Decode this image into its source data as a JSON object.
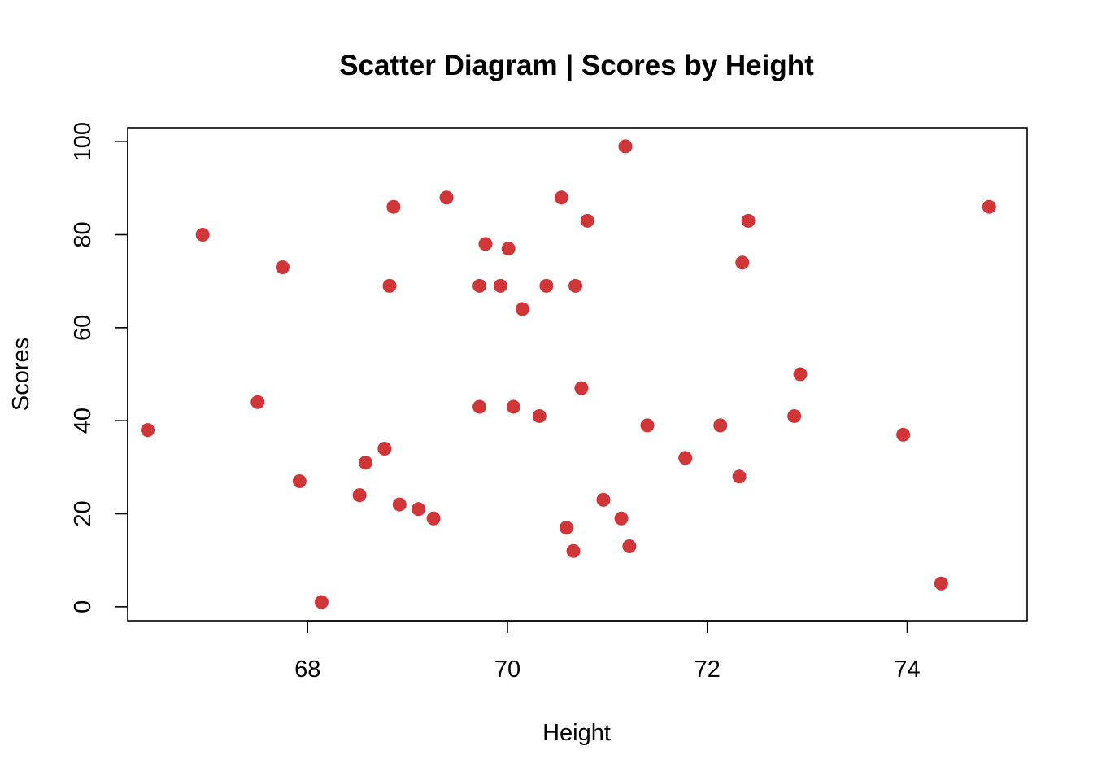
{
  "chart_data": {
    "type": "scatter",
    "title": "Scatter Diagram | Scores by Height",
    "xlabel": "Height",
    "ylabel": "Scores",
    "xlim": [
      66.2,
      75.2
    ],
    "ylim": [
      -3,
      103
    ],
    "xticks": [
      68,
      70,
      72,
      74
    ],
    "yticks": [
      0,
      20,
      40,
      60,
      80,
      100
    ],
    "grid": false,
    "point_color": "#d03538",
    "points": [
      {
        "x": 66.4,
        "y": 38
      },
      {
        "x": 66.95,
        "y": 80
      },
      {
        "x": 67.5,
        "y": 44
      },
      {
        "x": 67.75,
        "y": 73
      },
      {
        "x": 67.92,
        "y": 27
      },
      {
        "x": 68.14,
        "y": 1
      },
      {
        "x": 68.52,
        "y": 24
      },
      {
        "x": 68.58,
        "y": 31
      },
      {
        "x": 68.77,
        "y": 34
      },
      {
        "x": 68.82,
        "y": 69
      },
      {
        "x": 68.86,
        "y": 86
      },
      {
        "x": 68.92,
        "y": 22
      },
      {
        "x": 69.11,
        "y": 21
      },
      {
        "x": 69.26,
        "y": 19
      },
      {
        "x": 69.39,
        "y": 88
      },
      {
        "x": 69.72,
        "y": 43
      },
      {
        "x": 69.72,
        "y": 69
      },
      {
        "x": 69.78,
        "y": 78
      },
      {
        "x": 69.93,
        "y": 69
      },
      {
        "x": 70.01,
        "y": 77
      },
      {
        "x": 70.06,
        "y": 43
      },
      {
        "x": 70.15,
        "y": 64
      },
      {
        "x": 70.32,
        "y": 41
      },
      {
        "x": 70.39,
        "y": 69
      },
      {
        "x": 70.54,
        "y": 88
      },
      {
        "x": 70.59,
        "y": 17
      },
      {
        "x": 70.66,
        "y": 12
      },
      {
        "x": 70.68,
        "y": 69
      },
      {
        "x": 70.74,
        "y": 47
      },
      {
        "x": 70.8,
        "y": 83
      },
      {
        "x": 70.96,
        "y": 23
      },
      {
        "x": 71.14,
        "y": 19
      },
      {
        "x": 71.18,
        "y": 99
      },
      {
        "x": 71.22,
        "y": 13
      },
      {
        "x": 71.4,
        "y": 39
      },
      {
        "x": 71.78,
        "y": 32
      },
      {
        "x": 72.13,
        "y": 39
      },
      {
        "x": 72.32,
        "y": 28
      },
      {
        "x": 72.35,
        "y": 74
      },
      {
        "x": 72.41,
        "y": 83
      },
      {
        "x": 72.87,
        "y": 41
      },
      {
        "x": 72.93,
        "y": 50
      },
      {
        "x": 73.96,
        "y": 37
      },
      {
        "x": 74.34,
        "y": 5
      },
      {
        "x": 74.82,
        "y": 86
      }
    ]
  }
}
